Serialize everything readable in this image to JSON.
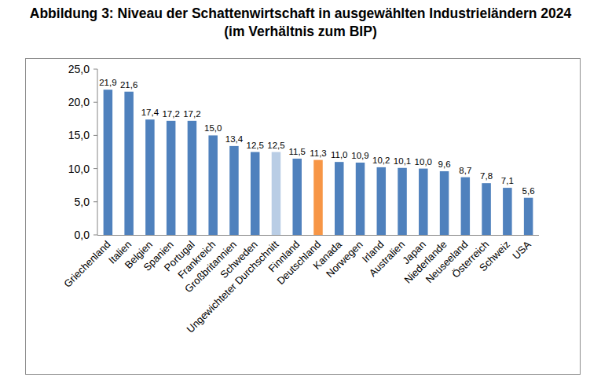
{
  "chart_data": {
    "type": "bar",
    "title": "Abbildung 3: Niveau der Schattenwirtschaft in ausgewählten Industrieländern 2024 (im Verhältnis zum BIP)",
    "categories": [
      "Griechenland",
      "Italien",
      "Belgien",
      "Spanien",
      "Portugal",
      "Frankreich",
      "Großbritannien",
      "Schweden",
      "Ungewichteter Durchschnitt",
      "Finnland",
      "Deutschland",
      "Kanada",
      "Norwegen",
      "Irland",
      "Australien",
      "Japan",
      "Niederlande",
      "Neuseeland",
      "Österreich",
      "Schweiz",
      "USA"
    ],
    "values": [
      21.9,
      21.6,
      17.4,
      17.2,
      17.2,
      15.0,
      13.4,
      12.5,
      12.5,
      11.5,
      11.3,
      11.0,
      10.9,
      10.2,
      10.1,
      10.0,
      9.6,
      8.7,
      7.8,
      7.1,
      5.6
    ],
    "value_labels": [
      "21,9",
      "21,6",
      "17,4",
      "17,2",
      "17,2",
      "15,0",
      "13,4",
      "12,5",
      "12,5",
      "11,5",
      "11,3",
      "11,0",
      "10,9",
      "10,2",
      "10,1",
      "10,0",
      "9,6",
      "8,7",
      "7,8",
      "7,1",
      "5,6"
    ],
    "colors": [
      "#4f81bd",
      "#4f81bd",
      "#4f81bd",
      "#4f81bd",
      "#4f81bd",
      "#4f81bd",
      "#4f81bd",
      "#4f81bd",
      "#b9cde5",
      "#4f81bd",
      "#f79646",
      "#4f81bd",
      "#4f81bd",
      "#4f81bd",
      "#4f81bd",
      "#4f81bd",
      "#4f81bd",
      "#4f81bd",
      "#4f81bd",
      "#4f81bd",
      "#4f81bd"
    ],
    "ylim": [
      0,
      25
    ],
    "yticks": [
      {
        "value": 0,
        "label": "0,0"
      },
      {
        "value": 5,
        "label": "5,0"
      },
      {
        "value": 10,
        "label": "10,0"
      },
      {
        "value": 15,
        "label": "15,0"
      },
      {
        "value": 20,
        "label": "20,0"
      },
      {
        "value": 25,
        "label": "25,0"
      }
    ],
    "grid": false,
    "data_labels": true
  }
}
